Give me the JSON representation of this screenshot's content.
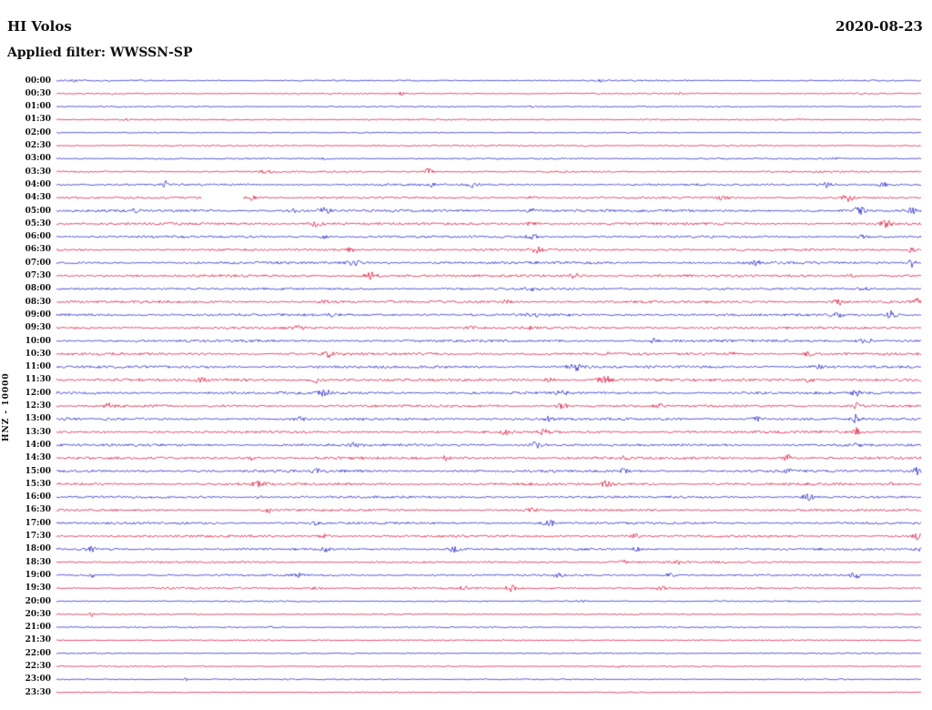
{
  "header": {
    "station": "HI Volos",
    "date": "2020-08-23",
    "filter_label": "Applied filter: WWSSN-SP"
  },
  "axis": {
    "channel_label": "HNZ - 10000"
  },
  "chart_data": {
    "type": "seismogram-helicorder",
    "station": "HI Volos",
    "date": "2020-08-23",
    "filter": "WWSSN-SP",
    "channel": "HNZ",
    "scale": 10000,
    "row_minutes": 30,
    "legend_position": "none",
    "grid": false,
    "colors": {
      "blue": "#2121c8",
      "red": "#dc143c"
    },
    "rows": [
      {
        "label": "00:00",
        "color": "blue",
        "base": 0.5,
        "events": [
          {
            "p": 0.02,
            "a": 1.5,
            "w": 2
          },
          {
            "p": 0.63,
            "a": 1.2,
            "w": 4
          }
        ]
      },
      {
        "label": "00:30",
        "color": "red",
        "base": 0.5,
        "events": [
          {
            "p": 0.4,
            "a": 2.2,
            "w": 2
          },
          {
            "p": 0.72,
            "a": 1.0,
            "w": 3
          }
        ]
      },
      {
        "label": "01:00",
        "color": "blue",
        "base": 0.45,
        "events": [
          {
            "p": 0.55,
            "a": 0.8,
            "w": 4
          }
        ]
      },
      {
        "label": "01:30",
        "color": "red",
        "base": 0.5,
        "events": [
          {
            "p": 0.08,
            "a": 1.0,
            "w": 3
          },
          {
            "p": 0.86,
            "a": 1.0,
            "w": 3
          }
        ]
      },
      {
        "label": "02:00",
        "color": "blue",
        "base": 0.4,
        "events": []
      },
      {
        "label": "02:30",
        "color": "red",
        "base": 0.5,
        "events": [
          {
            "p": 0.37,
            "a": 1.0,
            "w": 3
          },
          {
            "p": 0.61,
            "a": 1.8,
            "w": 2
          }
        ]
      },
      {
        "label": "03:00",
        "color": "blue",
        "base": 0.55,
        "events": [
          {
            "p": 0.31,
            "a": 1.2,
            "w": 4
          },
          {
            "p": 0.9,
            "a": 1.2,
            "w": 4
          }
        ]
      },
      {
        "label": "03:30",
        "color": "red",
        "base": 0.6,
        "events": [
          {
            "p": 0.245,
            "a": 2.0,
            "w": 6
          },
          {
            "p": 0.43,
            "a": 3.5,
            "w": 4
          }
        ]
      },
      {
        "label": "04:00",
        "color": "blue",
        "base": 0.7,
        "events": [
          {
            "p": 0.125,
            "a": 4.5,
            "w": 2
          },
          {
            "p": 0.43,
            "a": 2.5,
            "w": 5
          },
          {
            "p": 0.48,
            "a": 2.5,
            "w": 4
          },
          {
            "p": 0.89,
            "a": 3.0,
            "w": 6
          },
          {
            "p": 0.955,
            "a": 3.5,
            "w": 3
          }
        ]
      },
      {
        "label": "04:30",
        "color": "red",
        "base": 0.7,
        "gaps": [
          [
            0.168,
            0.215
          ]
        ],
        "events": [
          {
            "p": 0.225,
            "a": 2.5,
            "w": 4
          },
          {
            "p": 0.55,
            "a": 1.5,
            "w": 5
          },
          {
            "p": 0.77,
            "a": 2.0,
            "w": 4
          },
          {
            "p": 0.915,
            "a": 3.5,
            "w": 5
          }
        ]
      },
      {
        "label": "05:00",
        "color": "blue",
        "base": 0.9,
        "events": [
          {
            "p": 0.09,
            "a": 1.5,
            "w": 4
          },
          {
            "p": 0.275,
            "a": 2.0,
            "w": 5
          },
          {
            "p": 0.31,
            "a": 3.0,
            "w": 4
          },
          {
            "p": 0.55,
            "a": 2.0,
            "w": 5
          },
          {
            "p": 0.93,
            "a": 4.0,
            "w": 5
          },
          {
            "p": 0.99,
            "a": 3.0,
            "w": 3
          }
        ]
      },
      {
        "label": "05:30",
        "color": "red",
        "base": 0.85,
        "events": [
          {
            "p": 0.3,
            "a": 3.5,
            "w": 5
          },
          {
            "p": 0.55,
            "a": 1.5,
            "w": 5
          },
          {
            "p": 0.96,
            "a": 4.0,
            "w": 4
          }
        ]
      },
      {
        "label": "06:00",
        "color": "blue",
        "base": 0.8,
        "events": [
          {
            "p": 0.31,
            "a": 2.5,
            "w": 4
          },
          {
            "p": 0.55,
            "a": 2.0,
            "w": 5
          },
          {
            "p": 0.93,
            "a": 2.0,
            "w": 4
          }
        ]
      },
      {
        "label": "06:30",
        "color": "red",
        "base": 0.8,
        "events": [
          {
            "p": 0.34,
            "a": 2.2,
            "w": 4
          },
          {
            "p": 0.555,
            "a": 3.0,
            "w": 5
          },
          {
            "p": 0.99,
            "a": 4.5,
            "w": 3
          }
        ]
      },
      {
        "label": "07:00",
        "color": "blue",
        "base": 0.9,
        "events": [
          {
            "p": 0.345,
            "a": 3.2,
            "w": 5
          },
          {
            "p": 0.81,
            "a": 2.0,
            "w": 4
          },
          {
            "p": 0.99,
            "a": 4.5,
            "w": 3
          }
        ]
      },
      {
        "label": "07:30",
        "color": "red",
        "base": 0.9,
        "events": [
          {
            "p": 0.365,
            "a": 3.5,
            "w": 5
          },
          {
            "p": 0.6,
            "a": 2.5,
            "w": 5
          },
          {
            "p": 0.92,
            "a": 2.0,
            "w": 4
          }
        ]
      },
      {
        "label": "08:00",
        "color": "blue",
        "base": 0.8,
        "events": [
          {
            "p": 0.55,
            "a": 1.8,
            "w": 5
          },
          {
            "p": 0.93,
            "a": 2.0,
            "w": 5
          }
        ]
      },
      {
        "label": "08:30",
        "color": "red",
        "base": 0.9,
        "events": [
          {
            "p": 0.31,
            "a": 1.8,
            "w": 4
          },
          {
            "p": 0.52,
            "a": 1.8,
            "w": 4
          },
          {
            "p": 0.905,
            "a": 3.0,
            "w": 5
          },
          {
            "p": 0.995,
            "a": 4.5,
            "w": 3
          }
        ]
      },
      {
        "label": "09:00",
        "color": "blue",
        "base": 0.9,
        "events": [
          {
            "p": 0.32,
            "a": 2.2,
            "w": 4
          },
          {
            "p": 0.55,
            "a": 1.8,
            "w": 4
          },
          {
            "p": 0.905,
            "a": 2.0,
            "w": 4
          },
          {
            "p": 0.965,
            "a": 4.0,
            "w": 4
          }
        ]
      },
      {
        "label": "09:30",
        "color": "red",
        "base": 0.8,
        "events": [
          {
            "p": 0.28,
            "a": 2.0,
            "w": 4
          },
          {
            "p": 0.48,
            "a": 1.5,
            "w": 4
          },
          {
            "p": 0.55,
            "a": 1.8,
            "w": 4
          }
        ]
      },
      {
        "label": "10:00",
        "color": "blue",
        "base": 0.9,
        "events": [
          {
            "p": 0.69,
            "a": 3.5,
            "w": 2
          },
          {
            "p": 0.935,
            "a": 3.5,
            "w": 5
          }
        ]
      },
      {
        "label": "10:30",
        "color": "red",
        "base": 0.9,
        "events": [
          {
            "p": 0.315,
            "a": 3.0,
            "w": 4
          },
          {
            "p": 0.635,
            "a": 2.2,
            "w": 4
          },
          {
            "p": 0.78,
            "a": 1.8,
            "w": 4
          },
          {
            "p": 0.87,
            "a": 1.8,
            "w": 4
          }
        ]
      },
      {
        "label": "11:00",
        "color": "blue",
        "base": 0.9,
        "events": [
          {
            "p": 0.6,
            "a": 3.5,
            "w": 7
          },
          {
            "p": 0.88,
            "a": 2.0,
            "w": 4
          }
        ]
      },
      {
        "label": "11:30",
        "color": "red",
        "base": 1.0,
        "events": [
          {
            "p": 0.17,
            "a": 2.0,
            "w": 4
          },
          {
            "p": 0.3,
            "a": 3.0,
            "w": 5
          },
          {
            "p": 0.57,
            "a": 2.0,
            "w": 4
          },
          {
            "p": 0.635,
            "a": 3.2,
            "w": 6
          },
          {
            "p": 0.87,
            "a": 2.5,
            "w": 4
          }
        ]
      },
      {
        "label": "12:00",
        "color": "blue",
        "base": 0.9,
        "events": [
          {
            "p": 0.31,
            "a": 3.2,
            "w": 5
          },
          {
            "p": 0.585,
            "a": 2.2,
            "w": 4
          },
          {
            "p": 0.925,
            "a": 2.5,
            "w": 4
          }
        ]
      },
      {
        "label": "12:30",
        "color": "red",
        "base": 0.9,
        "events": [
          {
            "p": 0.06,
            "a": 2.2,
            "w": 3
          },
          {
            "p": 0.585,
            "a": 3.0,
            "w": 5
          },
          {
            "p": 0.7,
            "a": 1.8,
            "w": 4
          },
          {
            "p": 0.925,
            "a": 3.5,
            "w": 4
          }
        ]
      },
      {
        "label": "13:00",
        "color": "blue",
        "base": 0.9,
        "events": [
          {
            "p": 0.28,
            "a": 2.2,
            "w": 4
          },
          {
            "p": 0.57,
            "a": 1.8,
            "w": 4
          },
          {
            "p": 0.81,
            "a": 2.5,
            "w": 4
          },
          {
            "p": 0.925,
            "a": 5.0,
            "w": 2
          }
        ]
      },
      {
        "label": "13:30",
        "color": "red",
        "base": 0.9,
        "events": [
          {
            "p": 0.52,
            "a": 2.0,
            "w": 4
          },
          {
            "p": 0.565,
            "a": 3.2,
            "w": 4
          },
          {
            "p": 0.925,
            "a": 5.0,
            "w": 2
          }
        ]
      },
      {
        "label": "14:00",
        "color": "blue",
        "base": 0.9,
        "events": [
          {
            "p": 0.345,
            "a": 2.2,
            "w": 4
          },
          {
            "p": 0.555,
            "a": 3.2,
            "w": 5
          },
          {
            "p": 0.925,
            "a": 2.5,
            "w": 3
          }
        ]
      },
      {
        "label": "14:30",
        "color": "red",
        "base": 0.9,
        "events": [
          {
            "p": 0.225,
            "a": 2.0,
            "w": 4
          },
          {
            "p": 0.45,
            "a": 2.0,
            "w": 4
          },
          {
            "p": 0.655,
            "a": 1.8,
            "w": 4
          },
          {
            "p": 0.845,
            "a": 3.5,
            "w": 3
          }
        ]
      },
      {
        "label": "15:00",
        "color": "blue",
        "base": 0.9,
        "events": [
          {
            "p": 0.3,
            "a": 2.0,
            "w": 4
          },
          {
            "p": 0.655,
            "a": 2.2,
            "w": 4
          },
          {
            "p": 0.845,
            "a": 2.0,
            "w": 4
          },
          {
            "p": 0.995,
            "a": 4.0,
            "w": 3
          }
        ]
      },
      {
        "label": "15:30",
        "color": "red",
        "base": 0.9,
        "events": [
          {
            "p": 0.235,
            "a": 3.0,
            "w": 5
          },
          {
            "p": 0.635,
            "a": 3.0,
            "w": 5
          },
          {
            "p": 0.97,
            "a": 2.5,
            "w": 3
          }
        ]
      },
      {
        "label": "16:00",
        "color": "blue",
        "base": 0.8,
        "events": [
          {
            "p": 0.235,
            "a": 2.5,
            "w": 2
          },
          {
            "p": 0.87,
            "a": 3.2,
            "w": 5
          }
        ]
      },
      {
        "label": "16:30",
        "color": "red",
        "base": 0.8,
        "events": [
          {
            "p": 0.245,
            "a": 6.0,
            "w": 1.2
          },
          {
            "p": 0.55,
            "a": 1.8,
            "w": 4
          }
        ]
      },
      {
        "label": "17:00",
        "color": "blue",
        "base": 0.8,
        "events": [
          {
            "p": 0.3,
            "a": 1.5,
            "w": 4
          },
          {
            "p": 0.57,
            "a": 3.0,
            "w": 5
          }
        ]
      },
      {
        "label": "17:30",
        "color": "red",
        "base": 0.8,
        "events": [
          {
            "p": 0.31,
            "a": 1.8,
            "w": 4
          },
          {
            "p": 0.67,
            "a": 2.2,
            "w": 4
          },
          {
            "p": 0.995,
            "a": 3.5,
            "w": 3
          }
        ]
      },
      {
        "label": "18:00",
        "color": "blue",
        "base": 0.8,
        "events": [
          {
            "p": 0.04,
            "a": 3.5,
            "w": 3
          },
          {
            "p": 0.31,
            "a": 2.0,
            "w": 4
          },
          {
            "p": 0.46,
            "a": 3.0,
            "w": 5
          },
          {
            "p": 0.67,
            "a": 1.8,
            "w": 4
          },
          {
            "p": 0.995,
            "a": 3.0,
            "w": 3
          }
        ]
      },
      {
        "label": "18:30",
        "color": "red",
        "base": 0.7,
        "events": [
          {
            "p": 0.655,
            "a": 2.0,
            "w": 4
          },
          {
            "p": 0.72,
            "a": 1.8,
            "w": 4
          }
        ]
      },
      {
        "label": "19:00",
        "color": "blue",
        "base": 0.7,
        "events": [
          {
            "p": 0.04,
            "a": 4.0,
            "w": 2
          },
          {
            "p": 0.28,
            "a": 1.8,
            "w": 4
          },
          {
            "p": 0.58,
            "a": 2.0,
            "w": 4
          },
          {
            "p": 0.71,
            "a": 2.0,
            "w": 4
          },
          {
            "p": 0.925,
            "a": 3.0,
            "w": 4
          }
        ]
      },
      {
        "label": "19:30",
        "color": "red",
        "base": 0.7,
        "events": [
          {
            "p": 0.3,
            "a": 1.8,
            "w": 4
          },
          {
            "p": 0.47,
            "a": 2.0,
            "w": 4
          },
          {
            "p": 0.525,
            "a": 3.0,
            "w": 4
          },
          {
            "p": 0.7,
            "a": 2.0,
            "w": 4
          }
        ]
      },
      {
        "label": "20:00",
        "color": "blue",
        "base": 0.5,
        "events": [
          {
            "p": 0.61,
            "a": 1.0,
            "w": 4
          }
        ]
      },
      {
        "label": "20:30",
        "color": "red",
        "base": 0.5,
        "events": [
          {
            "p": 0.04,
            "a": 3.5,
            "w": 1.5
          }
        ]
      },
      {
        "label": "21:00",
        "color": "blue",
        "base": 0.5,
        "events": [
          {
            "p": 0.25,
            "a": 1.0,
            "w": 3
          }
        ]
      },
      {
        "label": "21:30",
        "color": "red",
        "base": 0.45,
        "events": []
      },
      {
        "label": "22:00",
        "color": "blue",
        "base": 0.45,
        "events": []
      },
      {
        "label": "22:30",
        "color": "red",
        "base": 0.45,
        "events": [
          {
            "p": 0.65,
            "a": 1.0,
            "w": 3
          }
        ]
      },
      {
        "label": "23:00",
        "color": "blue",
        "base": 0.45,
        "events": [
          {
            "p": 0.15,
            "a": 1.5,
            "w": 2
          }
        ]
      },
      {
        "label": "23:30",
        "color": "red",
        "base": 0.4,
        "events": []
      }
    ]
  }
}
